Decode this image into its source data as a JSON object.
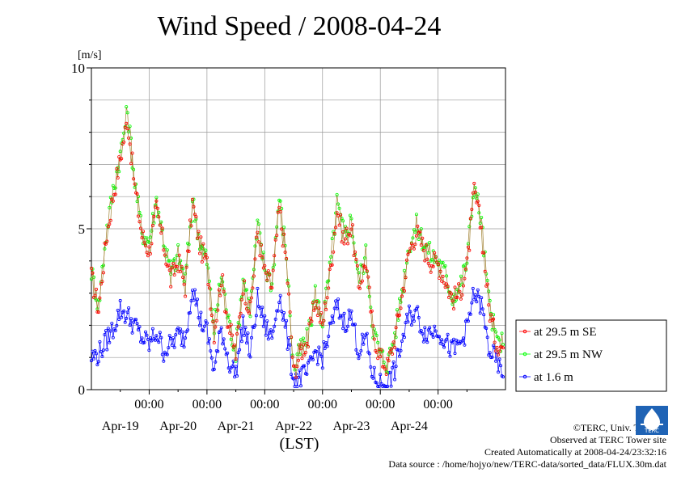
{
  "chart_data": {
    "type": "line",
    "title": "Wind Speed / 2008-04-24",
    "ylabel": "[m/s]",
    "xlabel": "(LST)",
    "ylim": [
      0,
      10
    ],
    "yticks": [
      "0",
      "5",
      "10"
    ],
    "x_days": [
      "Apr-19",
      "Apr-20",
      "Apr-21",
      "Apr-22",
      "Apr-23",
      "Apr-24"
    ],
    "x_time_label": "00:00",
    "grid": true,
    "legend_position": "right",
    "series": [
      {
        "name": "at 29.5 m SE",
        "color": "#ff0000",
        "keypoints": [
          [
            -24,
            3.5
          ],
          [
            -21,
            2.5
          ],
          [
            -18,
            4.6
          ],
          [
            -15,
            6.0
          ],
          [
            -12,
            7.2
          ],
          [
            -9,
            8.4
          ],
          [
            -6,
            6.3
          ],
          [
            -3,
            4.8
          ],
          [
            0,
            4.3
          ],
          [
            3,
            5.6
          ],
          [
            6,
            4.5
          ],
          [
            9,
            3.4
          ],
          [
            12,
            4.0
          ],
          [
            15,
            3.2
          ],
          [
            18,
            5.8
          ],
          [
            21,
            4.5
          ],
          [
            24,
            3.9
          ],
          [
            27,
            1.8
          ],
          [
            30,
            3.5
          ],
          [
            33,
            2.0
          ],
          [
            36,
            1.1
          ],
          [
            39,
            3.3
          ],
          [
            42,
            2.4
          ],
          [
            45,
            4.9
          ],
          [
            48,
            3.6
          ],
          [
            51,
            3.2
          ],
          [
            54,
            5.6
          ],
          [
            57,
            4.0
          ],
          [
            60,
            0.5
          ],
          [
            63,
            1.2
          ],
          [
            66,
            1.5
          ],
          [
            69,
            2.8
          ],
          [
            72,
            2.0
          ],
          [
            75,
            3.5
          ],
          [
            78,
            5.6
          ],
          [
            81,
            4.6
          ],
          [
            84,
            5.1
          ],
          [
            87,
            3.2
          ],
          [
            90,
            4.0
          ],
          [
            93,
            1.8
          ],
          [
            96,
            1.0
          ],
          [
            99,
            0.7
          ],
          [
            102,
            1.6
          ],
          [
            105,
            2.9
          ],
          [
            108,
            4.3
          ],
          [
            111,
            4.9
          ],
          [
            114,
            4.4
          ],
          [
            117,
            4.0
          ],
          [
            120,
            3.9
          ],
          [
            123,
            3.4
          ],
          [
            126,
            2.8
          ],
          [
            129,
            3.0
          ],
          [
            132,
            3.8
          ],
          [
            135,
            6.2
          ],
          [
            138,
            5.0
          ],
          [
            141,
            2.6
          ],
          [
            144,
            1.5
          ],
          [
            147,
            1.3
          ]
        ]
      },
      {
        "name": "at 29.5 m NW",
        "color": "#00ff00",
        "keypoints": [
          [
            -24,
            3.7
          ],
          [
            -21,
            2.6
          ],
          [
            -18,
            4.8
          ],
          [
            -15,
            6.2
          ],
          [
            -12,
            7.3
          ],
          [
            -9,
            8.7
          ],
          [
            -6,
            6.5
          ],
          [
            -3,
            4.9
          ],
          [
            0,
            4.6
          ],
          [
            3,
            5.9
          ],
          [
            6,
            4.7
          ],
          [
            9,
            3.6
          ],
          [
            12,
            4.2
          ],
          [
            15,
            3.4
          ],
          [
            18,
            5.9
          ],
          [
            21,
            4.6
          ],
          [
            24,
            4.0
          ],
          [
            27,
            1.9
          ],
          [
            30,
            3.6
          ],
          [
            33,
            2.1
          ],
          [
            36,
            1.2
          ],
          [
            39,
            3.5
          ],
          [
            42,
            2.5
          ],
          [
            45,
            5.1
          ],
          [
            48,
            3.8
          ],
          [
            51,
            3.3
          ],
          [
            54,
            6.0
          ],
          [
            57,
            4.2
          ],
          [
            60,
            0.6
          ],
          [
            63,
            1.3
          ],
          [
            66,
            1.6
          ],
          [
            69,
            3.0
          ],
          [
            72,
            2.1
          ],
          [
            75,
            3.7
          ],
          [
            78,
            5.8
          ],
          [
            81,
            4.8
          ],
          [
            84,
            5.3
          ],
          [
            87,
            3.4
          ],
          [
            90,
            4.2
          ],
          [
            93,
            1.9
          ],
          [
            96,
            1.1
          ],
          [
            99,
            0.8
          ],
          [
            102,
            1.7
          ],
          [
            105,
            3.1
          ],
          [
            108,
            4.5
          ],
          [
            111,
            5.1
          ],
          [
            114,
            4.6
          ],
          [
            117,
            4.2
          ],
          [
            120,
            4.0
          ],
          [
            123,
            3.6
          ],
          [
            126,
            2.9
          ],
          [
            129,
            3.2
          ],
          [
            132,
            4.0
          ],
          [
            135,
            6.4
          ],
          [
            138,
            5.2
          ],
          [
            141,
            2.8
          ],
          [
            144,
            1.6
          ],
          [
            147,
            1.4
          ]
        ]
      },
      {
        "name": "at 1.6 m",
        "color": "#0000ff",
        "keypoints": [
          [
            -24,
            1.0
          ],
          [
            -21,
            1.1
          ],
          [
            -18,
            1.5
          ],
          [
            -15,
            1.9
          ],
          [
            -12,
            2.5
          ],
          [
            -9,
            2.3
          ],
          [
            -6,
            2.0
          ],
          [
            -3,
            1.6
          ],
          [
            0,
            1.4
          ],
          [
            3,
            1.8
          ],
          [
            6,
            1.2
          ],
          [
            9,
            1.4
          ],
          [
            12,
            1.7
          ],
          [
            15,
            1.6
          ],
          [
            18,
            3.3
          ],
          [
            21,
            2.2
          ],
          [
            24,
            1.8
          ],
          [
            27,
            0.6
          ],
          [
            30,
            1.9
          ],
          [
            33,
            0.9
          ],
          [
            36,
            0.5
          ],
          [
            39,
            2.1
          ],
          [
            42,
            1.1
          ],
          [
            45,
            2.8
          ],
          [
            48,
            2.0
          ],
          [
            51,
            1.6
          ],
          [
            54,
            3.0
          ],
          [
            57,
            1.8
          ],
          [
            60,
            0.3
          ],
          [
            63,
            0.4
          ],
          [
            66,
            0.5
          ],
          [
            69,
            1.2
          ],
          [
            72,
            1.0
          ],
          [
            75,
            1.8
          ],
          [
            78,
            2.6
          ],
          [
            81,
            2.1
          ],
          [
            84,
            2.3
          ],
          [
            87,
            1.2
          ],
          [
            90,
            1.6
          ],
          [
            93,
            0.4
          ],
          [
            96,
            0.2
          ],
          [
            99,
            0.2
          ],
          [
            102,
            0.6
          ],
          [
            105,
            1.5
          ],
          [
            108,
            2.3
          ],
          [
            111,
            2.4
          ],
          [
            114,
            1.8
          ],
          [
            117,
            1.8
          ],
          [
            120,
            1.9
          ],
          [
            123,
            1.5
          ],
          [
            126,
            1.2
          ],
          [
            129,
            1.4
          ],
          [
            132,
            1.9
          ],
          [
            135,
            3.0
          ],
          [
            138,
            2.6
          ],
          [
            141,
            1.3
          ],
          [
            144,
            0.9
          ],
          [
            147,
            0.4
          ]
        ]
      }
    ]
  },
  "credits": {
    "copyright": "©TERC, Univ. Tsukuba",
    "observed": "Observed at TERC Tower site",
    "created": "Created Automatically at 2008-04-24/23:32:16",
    "source": "Data source : /home/hojyo/new/TERC-data/sorted_data/FLUX.30m.dat"
  },
  "logo_text": "TERC"
}
